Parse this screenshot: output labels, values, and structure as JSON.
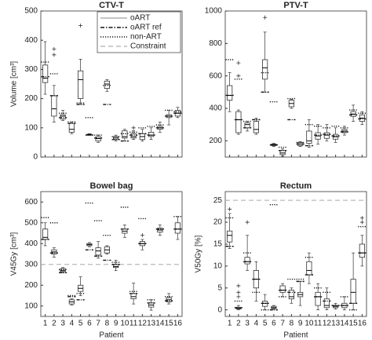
{
  "chart_data": [
    {
      "type": "box",
      "title": "CTV-T",
      "ylabel": "Volume [cm³]",
      "categories": [
        null,
        null,
        null,
        null,
        null,
        null,
        null,
        null,
        null,
        null,
        null,
        null,
        null,
        null,
        null,
        null
      ],
      "ylim": [
        0,
        500
      ],
      "yticks": [
        0,
        100,
        200,
        300,
        400,
        500
      ],
      "legend": {
        "entries": [
          "oART",
          "oART ref",
          "non-ART",
          "Constraint"
        ],
        "corner": "upper right"
      },
      "oart": [
        {
          "low": 215,
          "q1": 255,
          "median": 270,
          "q3": 315,
          "high": 395,
          "outliers": []
        },
        {
          "low": 120,
          "q1": 140,
          "median": 165,
          "q3": 210,
          "high": 245,
          "outliers": [
            370,
            350
          ]
        },
        {
          "low": 125,
          "q1": 130,
          "median": 140,
          "q3": 145,
          "high": 160,
          "outliers": []
        },
        {
          "low": 80,
          "q1": 85,
          "median": 95,
          "q3": 115,
          "high": 120,
          "outliers": []
        },
        {
          "low": 180,
          "q1": 200,
          "median": 265,
          "q3": 295,
          "high": 335,
          "outliers": [
            450
          ]
        },
        {
          "low": 74,
          "q1": 75,
          "median": 77,
          "q3": 78,
          "high": 80,
          "outliers": []
        },
        {
          "low": 50,
          "q1": 55,
          "median": 63,
          "q3": 70,
          "high": 75,
          "outliers": []
        },
        {
          "low": 225,
          "q1": 235,
          "median": 250,
          "q3": 260,
          "high": 265,
          "outliers": []
        },
        {
          "low": 55,
          "q1": 60,
          "median": 65,
          "q3": 70,
          "high": 75,
          "outliers": []
        },
        {
          "low": 55,
          "q1": 65,
          "median": 70,
          "q3": 90,
          "high": 95,
          "outliers": []
        },
        {
          "low": 60,
          "q1": 65,
          "median": 70,
          "q3": 80,
          "high": 90,
          "outliers": [
            100
          ]
        },
        {
          "low": 55,
          "q1": 60,
          "median": 70,
          "q3": 80,
          "high": 95,
          "outliers": []
        },
        {
          "low": 60,
          "q1": 70,
          "median": 75,
          "q3": 85,
          "high": 100,
          "outliers": []
        },
        {
          "low": 85,
          "q1": 95,
          "median": 100,
          "q3": 105,
          "high": 120,
          "outliers": []
        },
        {
          "low": 110,
          "q1": 135,
          "median": 140,
          "q3": 145,
          "high": 160,
          "outliers": []
        },
        {
          "low": 135,
          "q1": 140,
          "median": 150,
          "q3": 160,
          "high": 170,
          "outliers": []
        }
      ],
      "oart_ref": [
        275,
        210,
        135,
        115,
        180,
        75,
        65,
        180,
        60,
        55,
        75,
        80,
        75,
        100,
        140,
        150
      ],
      "non_art": [
        325,
        285,
        150,
        120,
        185,
        135,
        75,
        245,
        70,
        80,
        85,
        100,
        105,
        110,
        160,
        155
      ]
    },
    {
      "type": "box",
      "title": "PTV-T",
      "categories": [
        null,
        null,
        null,
        null,
        null,
        null,
        null,
        null,
        null,
        null,
        null,
        null,
        null,
        null,
        null,
        null
      ],
      "ylim": [
        100,
        1000
      ],
      "yticks": [
        200,
        400,
        600,
        800,
        1000
      ],
      "oart": [
        {
          "low": 380,
          "q1": 450,
          "median": 480,
          "q3": 540,
          "high": 620,
          "outliers": []
        },
        {
          "low": 240,
          "q1": 250,
          "median": 330,
          "q3": 380,
          "high": 390,
          "outliers": [
            680,
            600
          ]
        },
        {
          "low": 260,
          "q1": 280,
          "median": 300,
          "q3": 310,
          "high": 320,
          "outliers": []
        },
        {
          "low": 240,
          "q1": 250,
          "median": 270,
          "q3": 320,
          "high": 340,
          "outliers": []
        },
        {
          "low": 500,
          "q1": 580,
          "median": 650,
          "q3": 700,
          "high": 870,
          "outliers": [
            960
          ]
        },
        {
          "low": 165,
          "q1": 170,
          "median": 175,
          "q3": 180,
          "high": 185,
          "outliers": []
        },
        {
          "low": 105,
          "q1": 115,
          "median": 125,
          "q3": 140,
          "high": 150,
          "outliers": []
        },
        {
          "low": 400,
          "q1": 410,
          "median": 430,
          "q3": 450,
          "high": 455,
          "outliers": []
        },
        {
          "low": 165,
          "q1": 170,
          "median": 180,
          "q3": 190,
          "high": 195,
          "outliers": []
        },
        {
          "low": 160,
          "q1": 185,
          "median": 200,
          "q3": 260,
          "high": 330,
          "outliers": []
        },
        {
          "low": 180,
          "q1": 210,
          "median": 230,
          "q3": 250,
          "high": 300,
          "outliers": []
        },
        {
          "low": 200,
          "q1": 215,
          "median": 235,
          "q3": 250,
          "high": 300,
          "outliers": []
        },
        {
          "low": 190,
          "q1": 210,
          "median": 225,
          "q3": 240,
          "high": 280,
          "outliers": []
        },
        {
          "low": 235,
          "q1": 250,
          "median": 260,
          "q3": 270,
          "high": 290,
          "outliers": []
        },
        {
          "low": 320,
          "q1": 350,
          "median": 365,
          "q3": 380,
          "high": 420,
          "outliers": []
        },
        {
          "low": 300,
          "q1": 320,
          "median": 340,
          "q3": 360,
          "high": 380,
          "outliers": []
        }
      ],
      "oart_ref": [
        480,
        330,
        280,
        330,
        500,
        175,
        140,
        330,
        180,
        170,
        235,
        240,
        230,
        255,
        360,
        335
      ],
      "non_art": [
        700,
        580,
        320,
        330,
        620,
        440,
        160,
        460,
        190,
        300,
        290,
        280,
        290,
        280,
        390,
        370
      ]
    },
    {
      "type": "box",
      "title": "Bowel bag",
      "ylabel": "V45Gy [cm³]",
      "xlabel": "Patient",
      "categories": [
        "1",
        "2",
        "3",
        "4",
        "5",
        "6",
        "7",
        "8",
        "9",
        "10",
        "11",
        "12",
        "13",
        "14",
        "15",
        "16"
      ],
      "ylim": [
        50,
        650
      ],
      "yticks": [
        100,
        200,
        300,
        400,
        500,
        600
      ],
      "constraint": 300,
      "oart": [
        {
          "low": 390,
          "q1": 420,
          "median": 430,
          "q3": 470,
          "high": 500,
          "outliers": []
        },
        {
          "low": 335,
          "q1": 350,
          "median": 360,
          "q3": 370,
          "high": 380,
          "outliers": []
        },
        {
          "low": 260,
          "q1": 265,
          "median": 270,
          "q3": 280,
          "high": 285,
          "outliers": []
        },
        {
          "low": 105,
          "q1": 110,
          "median": 120,
          "q3": 130,
          "high": 135,
          "outliers": []
        },
        {
          "low": 150,
          "q1": 170,
          "median": 185,
          "q3": 200,
          "high": 240,
          "outliers": []
        },
        {
          "low": 385,
          "q1": 390,
          "median": 395,
          "q3": 400,
          "high": 405,
          "outliers": []
        },
        {
          "low": 330,
          "q1": 345,
          "median": 365,
          "q3": 380,
          "high": 410,
          "outliers": []
        },
        {
          "low": 350,
          "q1": 355,
          "median": 370,
          "q3": 385,
          "high": 390,
          "outliers": []
        },
        {
          "low": 270,
          "q1": 285,
          "median": 290,
          "q3": 300,
          "high": 320,
          "outliers": []
        },
        {
          "low": 430,
          "q1": 450,
          "median": 460,
          "q3": 470,
          "high": 490,
          "outliers": []
        },
        {
          "low": 110,
          "q1": 135,
          "median": 145,
          "q3": 160,
          "high": 210,
          "outliers": []
        },
        {
          "low": 370,
          "q1": 390,
          "median": 400,
          "q3": 410,
          "high": 420,
          "outliers": [
            440
          ]
        },
        {
          "low": 80,
          "q1": 95,
          "median": 105,
          "q3": 115,
          "high": 130,
          "outliers": []
        },
        {
          "low": 440,
          "q1": 455,
          "median": 465,
          "q3": 475,
          "high": 490,
          "outliers": []
        },
        {
          "low": 110,
          "q1": 120,
          "median": 130,
          "q3": 140,
          "high": 160,
          "outliers": []
        },
        {
          "low": 420,
          "q1": 450,
          "median": 470,
          "q3": 500,
          "high": 530,
          "outliers": []
        }
      ],
      "oart_ref": [
        420,
        355,
        260,
        145,
        130,
        370,
        340,
        320,
        300,
        470,
        160,
        400,
        115,
        470,
        125,
        470
      ],
      "non_art": [
        525,
        500,
        275,
        150,
        160,
        595,
        510,
        440,
        310,
        575,
        170,
        520,
        130,
        470,
        145,
        530
      ]
    },
    {
      "type": "box",
      "title": "Rectum",
      "ylabel": "V50Gy [%]",
      "xlabel": "Patient",
      "categories": [
        "1",
        "2",
        "3",
        "4",
        "5",
        "6",
        "7",
        "8",
        "9",
        "10",
        "11",
        "12",
        "13",
        "14",
        "15",
        "16"
      ],
      "ylim": [
        -1.5,
        27
      ],
      "yticks": [
        0,
        5,
        10,
        15,
        20,
        25
      ],
      "constraint": 25,
      "oart": [
        {
          "low": 14,
          "q1": 15.5,
          "median": 17,
          "q3": 18,
          "high": 22,
          "outliers": [
            23
          ]
        },
        {
          "low": 0,
          "q1": 0.2,
          "median": 0.4,
          "q3": 0.6,
          "high": 1,
          "outliers": [
            5.5,
            4,
            3
          ]
        },
        {
          "low": 9,
          "q1": 10.5,
          "median": 11,
          "q3": 12,
          "high": 17,
          "outliers": [
            20
          ]
        },
        {
          "low": 2,
          "q1": 5,
          "median": 7,
          "q3": 9,
          "high": 11,
          "outliers": []
        },
        {
          "low": 0,
          "q1": 0.8,
          "median": 1.5,
          "q3": 2,
          "high": 3.5,
          "outliers": []
        },
        {
          "low": 0.1,
          "q1": 0.3,
          "median": 0.5,
          "q3": 0.8,
          "high": 1,
          "outliers": []
        },
        {
          "low": 3,
          "q1": 4,
          "median": 4.5,
          "q3": 5.5,
          "high": 6,
          "outliers": []
        },
        {
          "low": 1.5,
          "q1": 2.5,
          "median": 3,
          "q3": 4.5,
          "high": 5,
          "outliers": []
        },
        {
          "low": 1,
          "q1": 3,
          "median": 3.5,
          "q3": 4,
          "high": 6.5,
          "outliers": []
        },
        {
          "low": 6,
          "q1": 8,
          "median": 9,
          "q3": 11,
          "high": 13,
          "outliers": []
        },
        {
          "low": 0,
          "q1": 1,
          "median": 3,
          "q3": 4,
          "high": 6,
          "outliers": []
        },
        {
          "low": 0,
          "q1": 0.5,
          "median": 1,
          "q3": 2.5,
          "high": 5,
          "outliers": []
        },
        {
          "low": 0.2,
          "q1": 0.5,
          "median": 0.8,
          "q3": 1,
          "high": 1.5,
          "outliers": []
        },
        {
          "low": 0,
          "q1": 0.5,
          "median": 1,
          "q3": 1.5,
          "high": 3,
          "outliers": []
        },
        {
          "low": 0,
          "q1": 1.5,
          "median": 4,
          "q3": 7,
          "high": 13,
          "outliers": []
        },
        {
          "low": 10,
          "q1": 12,
          "median": 13,
          "q3": 15,
          "high": 17,
          "outliers": [
            20,
            21
          ]
        }
      ],
      "oart_ref": [
        14.5,
        0.5,
        11,
        7,
        1.5,
        0,
        4.5,
        4,
        6.5,
        8,
        3,
        2,
        1,
        1,
        1.5,
        13
      ],
      "non_art": [
        21,
        2,
        13,
        4,
        0,
        24,
        3,
        7,
        7,
        12,
        5,
        4,
        1,
        3,
        0,
        19
      ]
    }
  ]
}
